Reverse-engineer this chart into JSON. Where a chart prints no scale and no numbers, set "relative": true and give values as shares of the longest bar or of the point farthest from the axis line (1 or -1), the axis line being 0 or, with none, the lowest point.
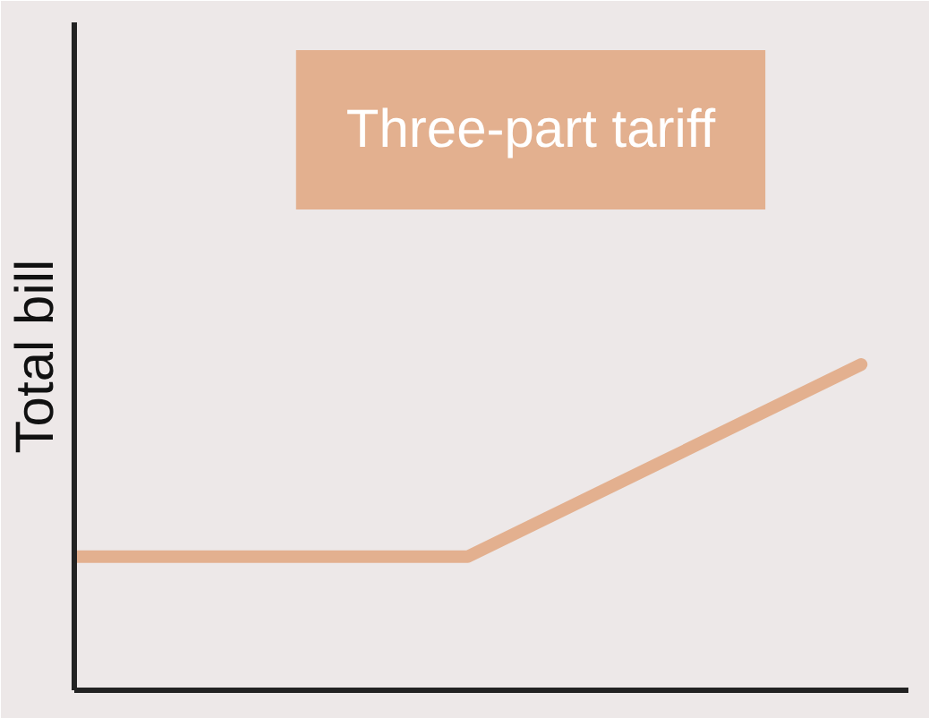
{
  "chart_data": {
    "type": "line",
    "title": "Three-part tariff",
    "ylabel": "Total bill",
    "relative": true,
    "categories": [
      null,
      null,
      null
    ],
    "series": [
      {
        "color": "#e3b08f",
        "values": [
          0.41,
          0.41,
          1
        ]
      }
    ],
    "grid": false,
    "tick_labels": false,
    "marker": "none",
    "line_style": "solid"
  }
}
